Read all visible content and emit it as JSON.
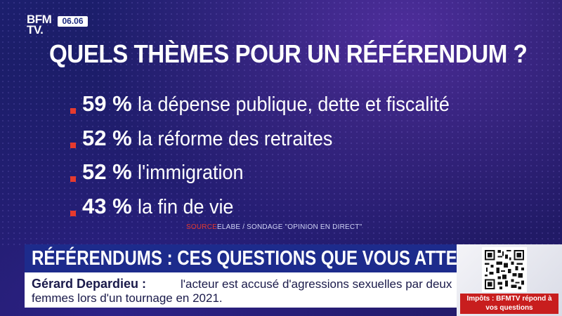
{
  "brand": {
    "logo_line1": "BFM",
    "logo_line2": "TV.",
    "time": "06.06"
  },
  "headline": "QUELS THÈMES POUR UN RÉFÉRENDUM ?",
  "results": [
    {
      "percent": "59 %",
      "label": "la dépense publique, dette et fiscalité"
    },
    {
      "percent": "52 %",
      "label": "la réforme des retraites"
    },
    {
      "percent": "52 %",
      "label": "l'immigration"
    },
    {
      "percent": "43 %",
      "label": "la fin de vie"
    }
  ],
  "source": {
    "prefix": "SOURCE",
    "text": "ELABE / SONDAGE \"OPINION EN DIRECT\""
  },
  "banner": "RÉFÉRENDUMS : CES QUESTIONS QUE VOUS ATTENDEZ",
  "ticker": {
    "name": "Gérard Depardieu :",
    "line1": "l'acteur est accusé d'agressions sexuelles par deux",
    "line2": "femmes lors d'un tournage en 2021."
  },
  "promo": {
    "caption": "Impôts : BFMTV répond à vos questions"
  },
  "colors": {
    "accent_red": "#e63a2e",
    "banner_blue": "#1d2b8c",
    "background": "#1a1a5e"
  }
}
